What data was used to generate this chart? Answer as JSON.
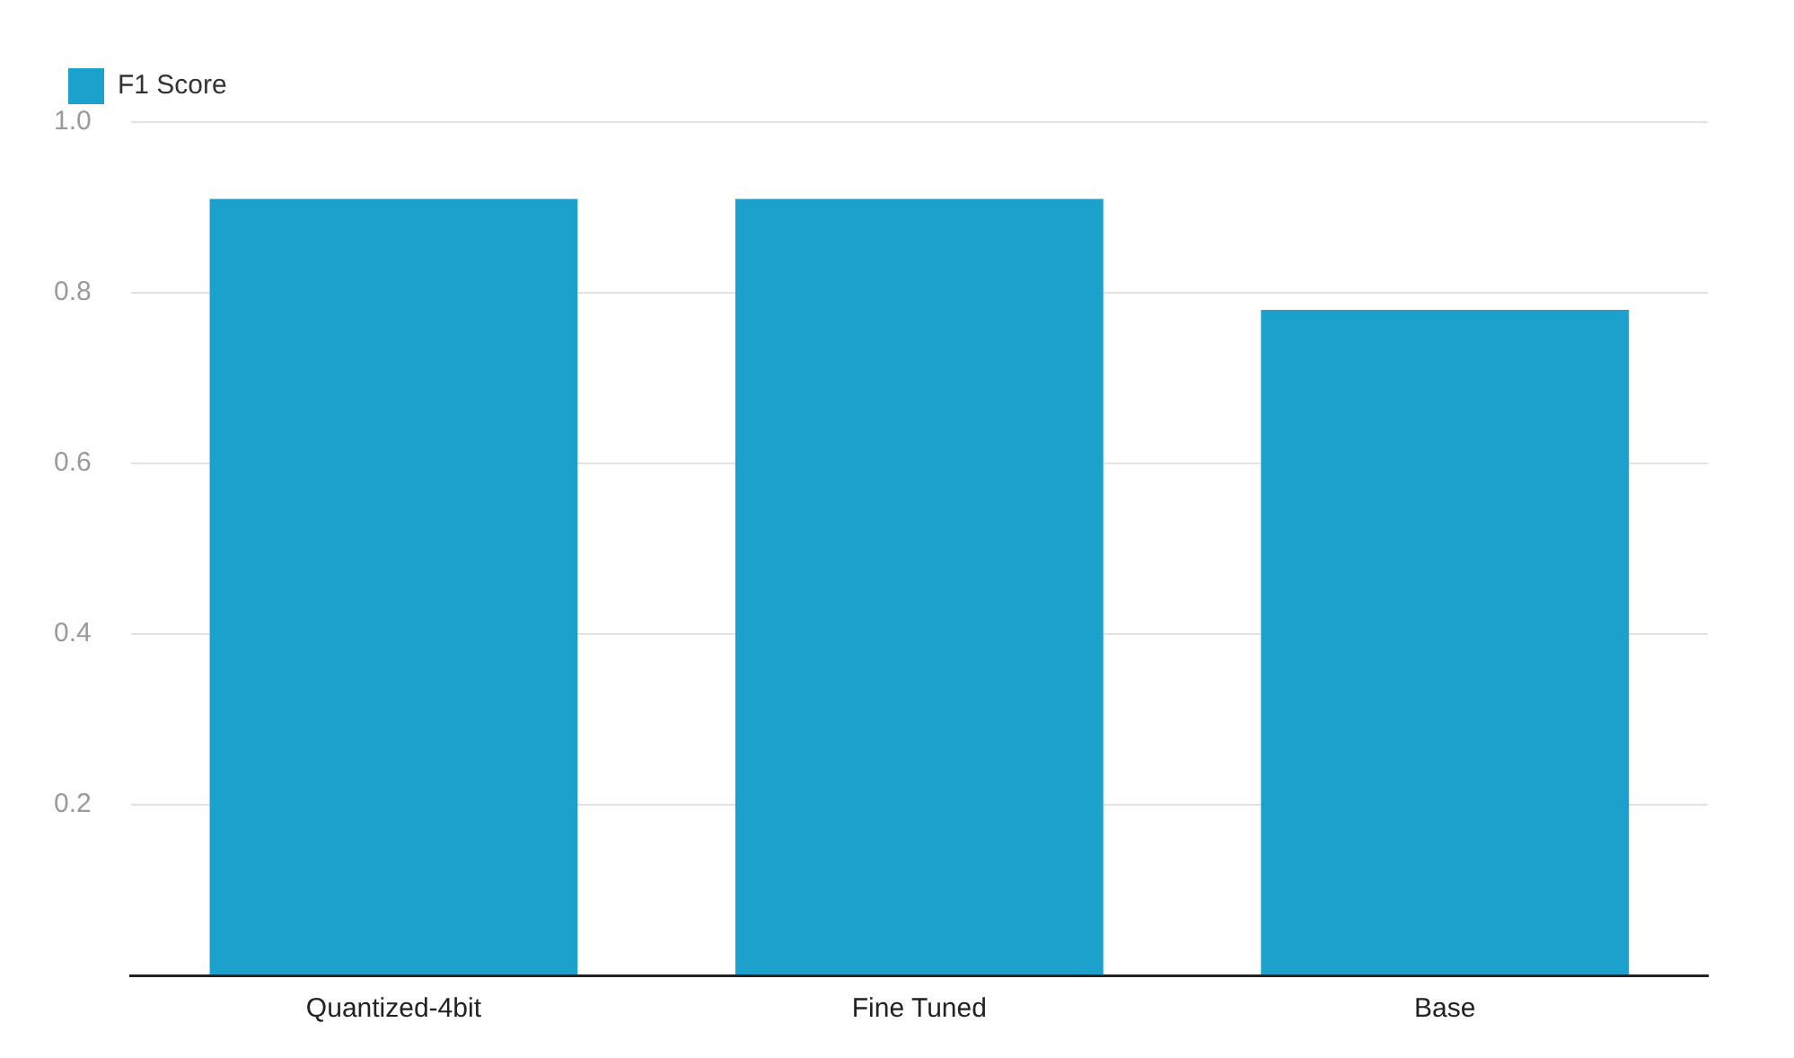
{
  "chart_data": {
    "type": "bar",
    "categories": [
      "Quantized-4bit",
      "Fine Tuned",
      "Base"
    ],
    "series": [
      {
        "name": "F1 Score",
        "color": "#1ba1cc",
        "values": [
          0.91,
          0.91,
          0.78
        ]
      }
    ],
    "ylim": [
      0,
      1
    ],
    "yticks": [
      {
        "value": 0,
        "label": null
      },
      0.2,
      0.4,
      0.6,
      0.8,
      {
        "value": 1,
        "label": "1.0"
      }
    ],
    "grid": "y",
    "legend": "top left"
  }
}
